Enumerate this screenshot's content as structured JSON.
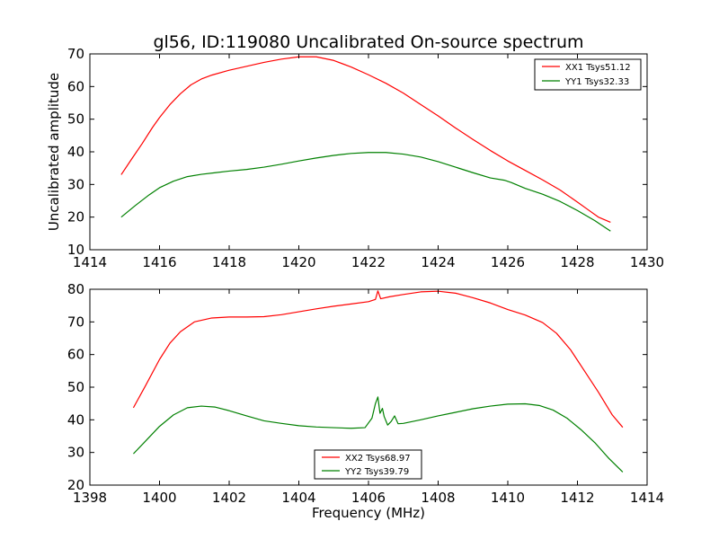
{
  "chart_data": [
    {
      "type": "line",
      "title": "gl56, ID:119080 Uncalibrated On-source spectrum",
      "xlabel": "",
      "ylabel": "Uncalibrated amplitude",
      "xlim": [
        1414,
        1430
      ],
      "ylim": [
        10,
        70
      ],
      "xticks": [
        1414,
        1416,
        1418,
        1420,
        1422,
        1424,
        1426,
        1428,
        1430
      ],
      "yticks": [
        10,
        20,
        30,
        40,
        50,
        60,
        70
      ],
      "grid": false,
      "legend_position": "upper right",
      "series": [
        {
          "name": "XX1 Tsys51.12",
          "color": "#ff0000",
          "x": [
            1414.9,
            1415.2,
            1415.5,
            1415.8,
            1416.0,
            1416.3,
            1416.6,
            1416.9,
            1417.2,
            1417.5,
            1418.0,
            1418.5,
            1419.0,
            1419.5,
            1420.0,
            1420.5,
            1421.0,
            1421.5,
            1422.0,
            1422.5,
            1423.0,
            1423.5,
            1424.0,
            1424.5,
            1425.0,
            1425.5,
            1426.0,
            1426.5,
            1427.0,
            1427.5,
            1428.0,
            1428.3,
            1428.6,
            1428.95
          ],
          "y": [
            33.0,
            37.8,
            42.5,
            47.5,
            50.5,
            54.5,
            57.8,
            60.5,
            62.3,
            63.5,
            65.0,
            66.2,
            67.4,
            68.4,
            69.1,
            69.1,
            68.0,
            66.0,
            63.6,
            61.0,
            58.0,
            54.5,
            51.0,
            47.3,
            43.8,
            40.4,
            37.2,
            34.3,
            31.4,
            28.3,
            24.6,
            22.3,
            20.0,
            18.4
          ]
        },
        {
          "name": "YY1 Tsys32.33",
          "color": "#008000",
          "x": [
            1414.9,
            1415.3,
            1415.7,
            1416.0,
            1416.4,
            1416.8,
            1417.2,
            1417.6,
            1418.0,
            1418.5,
            1419.0,
            1419.5,
            1420.0,
            1420.5,
            1421.0,
            1421.5,
            1422.0,
            1422.5,
            1423.0,
            1423.5,
            1424.0,
            1424.5,
            1425.0,
            1425.5,
            1425.9,
            1426.1,
            1426.5,
            1427.0,
            1427.5,
            1428.0,
            1428.5,
            1428.95
          ],
          "y": [
            20.0,
            23.5,
            26.8,
            29.0,
            31.0,
            32.4,
            33.1,
            33.6,
            34.1,
            34.6,
            35.3,
            36.2,
            37.2,
            38.1,
            38.9,
            39.5,
            39.8,
            39.8,
            39.3,
            38.4,
            37.0,
            35.3,
            33.6,
            32.0,
            31.3,
            30.6,
            28.8,
            27.0,
            24.8,
            22.0,
            18.9,
            15.7
          ]
        }
      ]
    },
    {
      "type": "line",
      "title": "",
      "xlabel": "Frequency (MHz)",
      "ylabel": "",
      "xlim": [
        1398,
        1414
      ],
      "ylim": [
        20,
        80
      ],
      "xticks": [
        1398,
        1400,
        1402,
        1404,
        1406,
        1408,
        1410,
        1412,
        1414
      ],
      "yticks": [
        20,
        30,
        40,
        50,
        60,
        70,
        80
      ],
      "grid": false,
      "legend_position": "lower center",
      "series": [
        {
          "name": "XX2 Tsys68.97",
          "color": "#ff0000",
          "x": [
            1399.25,
            1399.6,
            1400.0,
            1400.3,
            1400.6,
            1401.0,
            1401.5,
            1402.0,
            1402.5,
            1403.0,
            1403.5,
            1404.0,
            1404.5,
            1405.0,
            1405.5,
            1406.0,
            1406.2,
            1406.27,
            1406.35,
            1406.6,
            1407.0,
            1407.5,
            1408.0,
            1408.5,
            1409.0,
            1409.5,
            1410.0,
            1410.5,
            1411.0,
            1411.4,
            1411.8,
            1412.2,
            1412.6,
            1413.0,
            1413.3
          ],
          "y": [
            43.7,
            50.5,
            58.5,
            63.5,
            67.0,
            70.0,
            71.2,
            71.5,
            71.5,
            71.6,
            72.2,
            73.1,
            74.0,
            74.8,
            75.5,
            76.2,
            76.9,
            79.5,
            77.1,
            77.7,
            78.4,
            79.2,
            79.4,
            78.8,
            77.4,
            75.8,
            73.8,
            72.1,
            69.8,
            66.5,
            61.5,
            55.0,
            48.5,
            41.5,
            37.7
          ]
        },
        {
          "name": "YY2 Tsys39.79",
          "color": "#008000",
          "x": [
            1399.25,
            1399.6,
            1400.0,
            1400.4,
            1400.8,
            1401.2,
            1401.6,
            1402.0,
            1402.5,
            1403.0,
            1403.5,
            1404.0,
            1404.5,
            1405.0,
            1405.5,
            1405.9,
            1406.1,
            1406.2,
            1406.27,
            1406.33,
            1406.4,
            1406.45,
            1406.55,
            1406.65,
            1406.75,
            1406.85,
            1407.0,
            1407.5,
            1408.0,
            1408.5,
            1409.0,
            1409.5,
            1410.0,
            1410.5,
            1410.9,
            1411.3,
            1411.7,
            1412.1,
            1412.5,
            1412.9,
            1413.3
          ],
          "y": [
            29.6,
            33.5,
            38.0,
            41.5,
            43.7,
            44.2,
            43.9,
            42.8,
            41.2,
            39.7,
            38.9,
            38.2,
            37.8,
            37.6,
            37.4,
            37.6,
            40.5,
            45.0,
            47.0,
            42.0,
            43.5,
            41.0,
            38.4,
            39.5,
            41.2,
            38.8,
            38.9,
            40.0,
            41.2,
            42.3,
            43.4,
            44.2,
            44.8,
            44.9,
            44.4,
            43.0,
            40.5,
            37.0,
            33.0,
            28.2,
            24.0
          ]
        }
      ]
    }
  ]
}
